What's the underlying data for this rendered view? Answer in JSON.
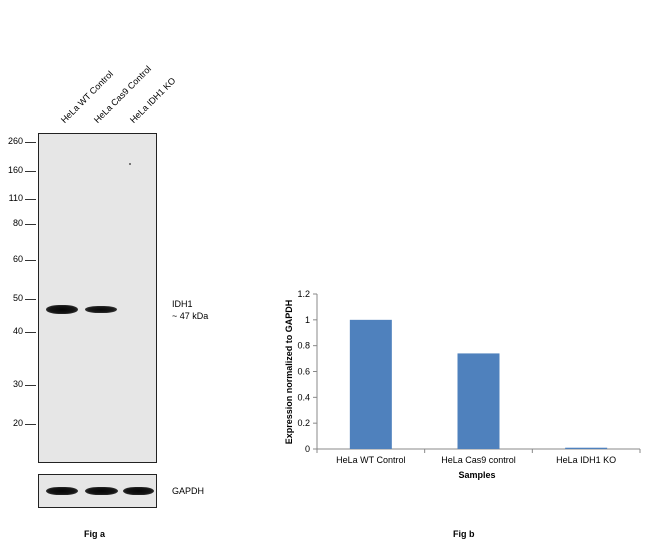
{
  "fig_a": {
    "lane_labels": [
      "HeLa WT Control",
      "HeLa Cas9 Control",
      "HeLa IDH1 KO"
    ],
    "markers": [
      "260",
      "160",
      "110",
      "80",
      "60",
      "50",
      "40",
      "30",
      "20"
    ],
    "band_label_line1": "IDH1",
    "band_label_line2": "~ 47 kDa",
    "loading_label": "GAPDH",
    "caption": "Fig a"
  },
  "fig_b": {
    "caption": "Fig b"
  },
  "chart_data": {
    "type": "bar",
    "categories": [
      "HeLa WT Control",
      "HeLa Cas9 control",
      "HeLa IDH1 KO"
    ],
    "values": [
      1.0,
      0.74,
      0.01
    ],
    "xlabel": "Samples",
    "ylabel": "Expression normalized to GAPDH",
    "ylim": [
      0,
      1.2
    ],
    "yticks": [
      "0",
      "0.2",
      "0.4",
      "0.6",
      "0.8",
      "1",
      "1.2"
    ],
    "bar_color": "#4f81bd",
    "grid": false
  }
}
